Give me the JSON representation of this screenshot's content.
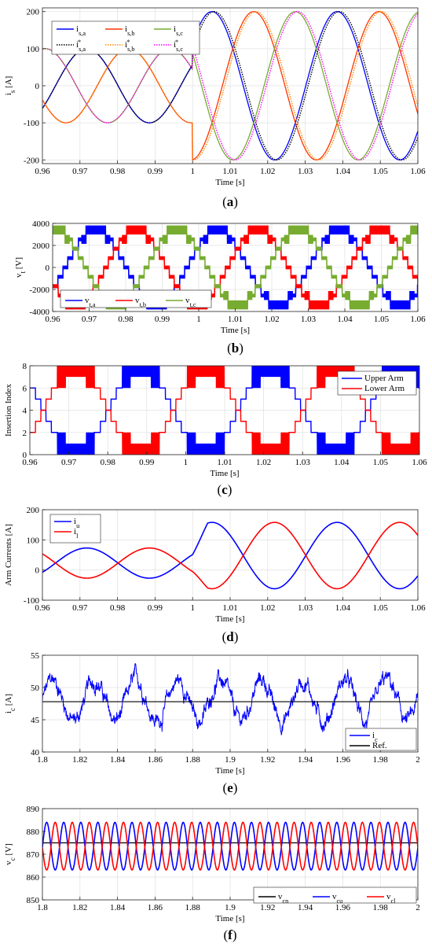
{
  "colors": {
    "blue": "#0000ff",
    "red": "#ff0000",
    "orange_red": "#ff3300",
    "green": "#77ac30",
    "black": "#000000",
    "orange": "#ff8c00",
    "magenta": "#ff00ff",
    "grid": "#e3e3e3"
  },
  "chart_data": [
    {
      "id": "a",
      "type": "line",
      "caption": "(a)",
      "xlabel": "Time [s]",
      "ylabel": "i_s [A]",
      "xlim": [
        0.96,
        1.06
      ],
      "ylim": [
        -210,
        210
      ],
      "xticks": [
        0.96,
        0.97,
        0.98,
        0.99,
        1,
        1.01,
        1.02,
        1.03,
        1.04,
        1.05,
        1.06
      ],
      "xtick_labels": [
        "0.96",
        "0.97",
        "0.98",
        "0.99",
        "1",
        "1.01",
        "1.02",
        "1.03",
        "1.04",
        "1.05",
        "1.06"
      ],
      "yticks": [
        -200,
        -100,
        0,
        100,
        200
      ],
      "ytick_labels": [
        "-200",
        "-100",
        "0",
        "100",
        "200"
      ],
      "grid": true,
      "legend": "top-left",
      "waveform": {
        "frequency_hz": 30,
        "amplitude_before": 100,
        "amplitude_after": 200,
        "step_time": 1.0
      },
      "series": [
        {
          "name": "i_s,a",
          "phase_deg": 0,
          "style": "solid",
          "color_key": "blue"
        },
        {
          "name": "i_s,b",
          "phase_deg": -120,
          "style": "solid",
          "color_key": "orange_red"
        },
        {
          "name": "i_s,c",
          "phase_deg": 120,
          "style": "solid",
          "color_key": "green"
        },
        {
          "name": "i*_s,a",
          "phase_deg": 0,
          "style": "dotted",
          "color_key": "black"
        },
        {
          "name": "i*_s,b",
          "phase_deg": -120,
          "style": "dotted",
          "color_key": "orange"
        },
        {
          "name": "i*_s,c",
          "phase_deg": 120,
          "style": "dotted",
          "color_key": "magenta"
        }
      ]
    },
    {
      "id": "b",
      "type": "line",
      "caption": "(b)",
      "xlabel": "Time [s]",
      "ylabel": "v_t [V]",
      "xlim": [
        0.96,
        1.06
      ],
      "ylim": [
        -4000,
        4000
      ],
      "xticks": [
        0.96,
        0.97,
        0.98,
        0.99,
        1,
        1.01,
        1.02,
        1.03,
        1.04,
        1.05,
        1.06
      ],
      "xtick_labels": [
        "0.96",
        "0.97",
        "0.98",
        "0.99",
        "1",
        "1.01",
        "1.02",
        "1.03",
        "1.04",
        "1.05",
        "1.06"
      ],
      "yticks": [
        -4000,
        -2000,
        0,
        2000,
        4000
      ],
      "ytick_labels": [
        "-4000",
        "-2000",
        "0",
        "2000",
        "4000"
      ],
      "grid": true,
      "legend": "bottom-left",
      "waveform": {
        "frequency_hz": 30,
        "amplitude": 3400,
        "levels": 8
      },
      "series": [
        {
          "name": "v_t,a",
          "phase_deg": 0,
          "color_key": "blue"
        },
        {
          "name": "v_t,b",
          "phase_deg": -120,
          "color_key": "red"
        },
        {
          "name": "v_t,c",
          "phase_deg": 120,
          "color_key": "green"
        }
      ]
    },
    {
      "id": "c",
      "type": "line",
      "caption": "(c)",
      "xlabel": "Time [s]",
      "ylabel": "Insertion Index",
      "xlim": [
        0.96,
        1.06
      ],
      "ylim": [
        0,
        8
      ],
      "xticks": [
        0.96,
        0.97,
        0.98,
        0.99,
        1,
        1.01,
        1.02,
        1.03,
        1.04,
        1.05,
        1.06
      ],
      "xtick_labels": [
        "0.96",
        "0.97",
        "0.98",
        "0.99",
        "1",
        "1.01",
        "1.02",
        "1.03",
        "1.04",
        "1.05",
        "1.06"
      ],
      "yticks": [
        0,
        2,
        4,
        6,
        8
      ],
      "ytick_labels": [
        "0",
        "2",
        "4",
        "6",
        "8"
      ],
      "grid": true,
      "legend": "top-right",
      "waveform": {
        "frequency_hz": 30,
        "offset": 4,
        "amplitude": 4
      },
      "series": [
        {
          "name": "Upper Arm",
          "phase_deg": 180,
          "color_key": "blue"
        },
        {
          "name": "Lower Arm",
          "phase_deg": 0,
          "color_key": "red"
        }
      ]
    },
    {
      "id": "d",
      "type": "line",
      "caption": "(d)",
      "xlabel": "Time [s]",
      "ylabel": "Arm Currents [A]",
      "xlim": [
        0.96,
        1.06
      ],
      "ylim": [
        -100,
        200
      ],
      "xticks": [
        0.96,
        0.97,
        0.98,
        0.99,
        1,
        1.01,
        1.02,
        1.03,
        1.04,
        1.05,
        1.06
      ],
      "xtick_labels": [
        "0.96",
        "0.97",
        "0.98",
        "0.99",
        "1",
        "1.01",
        "1.02",
        "1.03",
        "1.04",
        "1.05",
        "1.06"
      ],
      "yticks": [
        -100,
        0,
        100,
        200
      ],
      "ytick_labels": [
        "-100",
        "0",
        "100",
        "200"
      ],
      "grid": true,
      "legend": "top-left",
      "waveform": {
        "frequency_hz": 30,
        "dc_before": 23,
        "amp_before": 50,
        "dc_after": 48,
        "amp_after": 110,
        "step_time": 1.0
      },
      "series": [
        {
          "name": "i_u",
          "phase_deg": 0,
          "color_key": "blue"
        },
        {
          "name": "i_l",
          "phase_deg": 180,
          "color_key": "red"
        }
      ]
    },
    {
      "id": "e",
      "type": "line",
      "caption": "(e)",
      "xlabel": "Time [s]",
      "ylabel": "i_c [A]",
      "xlim": [
        1.8,
        2.0
      ],
      "ylim": [
        40,
        55
      ],
      "xticks": [
        1.8,
        1.82,
        1.84,
        1.86,
        1.88,
        1.9,
        1.92,
        1.94,
        1.96,
        1.98,
        2.0
      ],
      "xtick_labels": [
        "1.8",
        "1.82",
        "1.84",
        "1.86",
        "1.88",
        "1.9",
        "1.92",
        "1.94",
        "1.96",
        "1.98",
        "2"
      ],
      "yticks": [
        40,
        45,
        50,
        55
      ],
      "ytick_labels": [
        "40",
        "45",
        "50",
        "55"
      ],
      "grid": true,
      "legend": "bottom-right",
      "series": [
        {
          "name": "i_c",
          "color_key": "blue",
          "mean": 48,
          "swing": 3.5,
          "frequency_hz": 45,
          "noise": 1.2
        },
        {
          "name": "Ref.",
          "color_key": "black",
          "value": 47.8
        }
      ]
    },
    {
      "id": "f",
      "type": "line",
      "caption": "(f)",
      "xlabel": "Time [s]",
      "ylabel": "v_c [V]",
      "xlim": [
        1.8,
        2.0
      ],
      "ylim": [
        850,
        890
      ],
      "xticks": [
        1.8,
        1.82,
        1.84,
        1.86,
        1.88,
        1.9,
        1.92,
        1.94,
        1.96,
        1.98,
        2.0
      ],
      "xtick_labels": [
        "1.8",
        "1.82",
        "1.84",
        "1.86",
        "1.88",
        "1.9",
        "1.92",
        "1.94",
        "1.96",
        "1.98",
        "2"
      ],
      "yticks": [
        850,
        860,
        870,
        880,
        890
      ],
      "ytick_labels": [
        "850",
        "860",
        "870",
        "880",
        "890"
      ],
      "grid": true,
      "legend": "bottom-right",
      "series": [
        {
          "name": "v_cn",
          "color_key": "black",
          "value": 875
        },
        {
          "name": "v_cu",
          "color_key": "blue",
          "center": 873,
          "amplitude": 11,
          "frequency_hz": 110,
          "phase_deg": 0
        },
        {
          "name": "v_cl",
          "color_key": "red",
          "center": 873,
          "amplitude": 11,
          "frequency_hz": 110,
          "phase_deg": 180
        }
      ]
    }
  ]
}
